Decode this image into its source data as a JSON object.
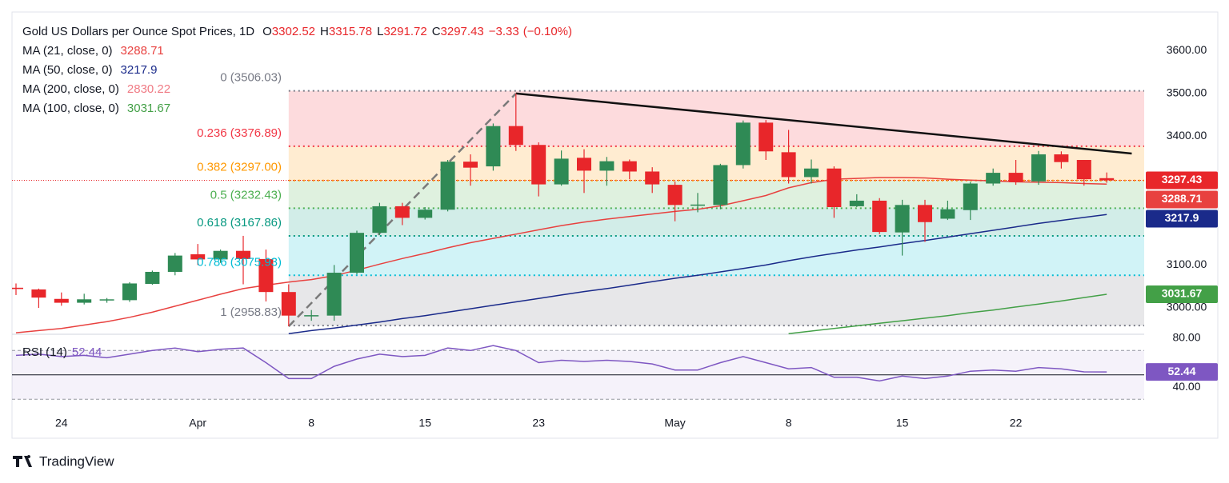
{
  "chart_data": {
    "type": "candlestick",
    "title": "Gold US Dollars per Ounce Spot Prices, 1D",
    "ohlc_header": [
      {
        "label": "O",
        "value": 3302.52
      },
      {
        "label": "H",
        "value": 3315.78
      },
      {
        "label": "L",
        "value": 3291.72
      },
      {
        "label": "C",
        "value": 3297.43
      }
    ],
    "change": -3.33,
    "change_label": "−3.33",
    "change_pct": -0.1,
    "change_pct_label": "(−0.10%)",
    "categories": [
      null,
      null,
      "24",
      null,
      null,
      null,
      null,
      null,
      "Apr",
      null,
      null,
      null,
      null,
      "8",
      null,
      null,
      null,
      null,
      "15",
      null,
      null,
      null,
      null,
      "23",
      null,
      null,
      null,
      null,
      null,
      "May",
      null,
      null,
      null,
      null,
      "8",
      null,
      null,
      null,
      null,
      "15",
      null,
      null,
      null,
      null,
      "22",
      null,
      null,
      null,
      null
    ],
    "open": [
      3047,
      3043,
      3021,
      3012,
      3019,
      3018,
      3056,
      3084,
      3125,
      3113,
      3133,
      3114,
      3037,
      2981,
      2982,
      3082,
      3175,
      3237,
      3210,
      3229,
      3341,
      3330,
      3424,
      3380,
      3288,
      3350,
      3320,
      3342,
      3318,
      3287,
      3240,
      3240,
      3333,
      3432,
      3363,
      3305,
      3325,
      3237,
      3250,
      3176,
      3240,
      3208,
      3228,
      3290,
      3315,
      3295,
      3358,
      3345,
      3302.52
    ],
    "high": [
      3057,
      3045,
      3036,
      3033,
      3023,
      3060,
      3087,
      3128,
      3149,
      3136,
      3168,
      3136,
      3055,
      2995,
      3100,
      3180,
      3245,
      3245,
      3235,
      3345,
      3358,
      3430,
      3500,
      3386,
      3367,
      3370,
      3352,
      3346,
      3328,
      3295,
      3268,
      3336,
      3437,
      3438,
      3415,
      3346,
      3330,
      3265,
      3256,
      3252,
      3252,
      3250,
      3294,
      3325,
      3345,
      3366,
      3365,
      3345,
      3315.78
    ],
    "low": [
      3030,
      3000,
      3005,
      3008,
      3012,
      3014,
      3054,
      3076,
      3100,
      3105,
      3055,
      3015,
      2957,
      2970,
      2970,
      3078,
      3170,
      3193,
      3206,
      3225,
      3285,
      3320,
      3366,
      3260,
      3285,
      3268,
      3285,
      3300,
      3268,
      3202,
      3223,
      3230,
      3325,
      3345,
      3290,
      3290,
      3210,
      3235,
      3172,
      3122,
      3154,
      3205,
      3205,
      3285,
      3287,
      3287,
      3325,
      3285,
      3291.72
    ],
    "close": [
      3044,
      3024,
      3012,
      3020,
      3020,
      3057,
      3084,
      3122,
      3113,
      3133,
      3114,
      3037,
      2982,
      2983,
      3082,
      3175,
      3237,
      3210,
      3229,
      3341,
      3327,
      3424,
      3380,
      3288,
      3348,
      3320,
      3342,
      3318,
      3288,
      3240,
      3241,
      3333,
      3432,
      3365,
      3305,
      3325,
      3235,
      3250,
      3177,
      3240,
      3200,
      3230,
      3290,
      3315,
      3293,
      3358,
      3340,
      3300,
      3297.43
    ],
    "up_color": "#2f8a55",
    "down_color": "#e8262a",
    "series": [
      {
        "name": "MA (21, close, 0)",
        "color": "#e8413f",
        "last": 3288.71,
        "values": [
          2942,
          2947,
          2952,
          2960,
          2968,
          2978,
          2990,
          3004,
          3018,
          3032,
          3045,
          3053,
          3060,
          3066,
          3075,
          3088,
          3102,
          3115,
          3127,
          3140,
          3152,
          3162,
          3172,
          3182,
          3192,
          3200,
          3207,
          3213,
          3219,
          3225,
          3230,
          3238,
          3250,
          3262,
          3280,
          3292,
          3300,
          3302,
          3304,
          3304,
          3303,
          3300,
          3298,
          3296,
          3294,
          3293,
          3292,
          3290,
          3288.71
        ]
      },
      {
        "name": "MA (50, close, 0)",
        "color": "#1a2a8a",
        "last": 3217.9,
        "values": [
          null,
          null,
          null,
          null,
          null,
          null,
          null,
          null,
          null,
          null,
          null,
          null,
          2940,
          2947,
          2953,
          2960,
          2967,
          2975,
          2982,
          2990,
          2998,
          3006,
          3014,
          3022,
          3030,
          3038,
          3045,
          3053,
          3061,
          3069,
          3076,
          3084,
          3092,
          3100,
          3110,
          3119,
          3127,
          3135,
          3142,
          3150,
          3157,
          3165,
          3173,
          3181,
          3189,
          3197,
          3204,
          3211,
          3217.9
        ]
      },
      {
        "name": "MA (200, close, 0)",
        "color": "#f07b85",
        "last": 2830.22
      },
      {
        "name": "MA (100, close, 0)",
        "color": "#43a047",
        "last": 3031.67,
        "values": [
          null,
          null,
          null,
          null,
          null,
          null,
          null,
          null,
          null,
          null,
          null,
          null,
          null,
          null,
          null,
          null,
          null,
          null,
          null,
          null,
          null,
          null,
          null,
          null,
          null,
          null,
          null,
          null,
          null,
          null,
          null,
          null,
          null,
          null,
          2940,
          2946,
          2952,
          2958,
          2964,
          2970,
          2976,
          2982,
          2989,
          2995,
          3002,
          3009,
          3016,
          3024,
          3031.67
        ]
      }
    ],
    "fib": [
      {
        "label": "0 (3506.03)",
        "value": 3506.03,
        "color": "#787b86"
      },
      {
        "label": "0.236 (3376.89)",
        "value": 3376.89,
        "color": "#f23645"
      },
      {
        "label": "0.382 (3297.00)",
        "value": 3297.0,
        "color": "#ff9800"
      },
      {
        "label": "0.5 (3232.43)",
        "value": 3232.43,
        "color": "#4caf50"
      },
      {
        "label": "0.618 (3167.86)",
        "value": 3167.86,
        "color": "#089981"
      },
      {
        "label": "0.786 (3075.93)",
        "value": 3075.93,
        "color": "#00bcd4"
      },
      {
        "label": "1 (2958.83)",
        "value": 2958.83,
        "color": "#787b86"
      }
    ],
    "trendlines": [
      {
        "x": [
          22,
          49.1
        ],
        "y": [
          3500,
          3360
        ],
        "color": "#111111",
        "dashed": false
      },
      {
        "x": [
          12,
          22
        ],
        "y": [
          2957,
          3500
        ],
        "color": "#7a7a7a",
        "dashed": true
      }
    ],
    "ylim": [
      2938.5,
      3690
    ],
    "yticks": [
      {
        "value": 3000,
        "label": "3000.00"
      },
      {
        "value": 3100,
        "label": "3100.00"
      },
      {
        "value": 3400,
        "label": "3400.00"
      },
      {
        "value": 3500,
        "label": "3500.00"
      },
      {
        "value": 3600,
        "label": "3600.00"
      }
    ],
    "rsi": {
      "name": "RSI (14)",
      "color": "#7e57c2",
      "last": 52.44,
      "values": [
        66,
        67,
        65,
        66,
        64,
        67,
        70,
        72,
        69,
        71,
        72,
        60,
        47,
        47,
        57,
        63,
        67,
        65,
        66,
        72,
        70,
        74,
        70,
        60,
        62,
        61,
        62,
        61,
        59,
        54,
        54,
        60,
        65,
        60,
        55,
        56,
        48,
        48,
        45,
        49,
        47,
        49,
        53,
        54,
        53,
        56,
        55,
        52.5,
        52.44
      ],
      "ylim": [
        24.3,
        83.3
      ],
      "yticks": [
        {
          "value": 80,
          "label": "80.00"
        },
        {
          "value": 40,
          "label": "40.00"
        }
      ],
      "levels": [
        70,
        50,
        30
      ]
    }
  },
  "footer": "TradingView"
}
